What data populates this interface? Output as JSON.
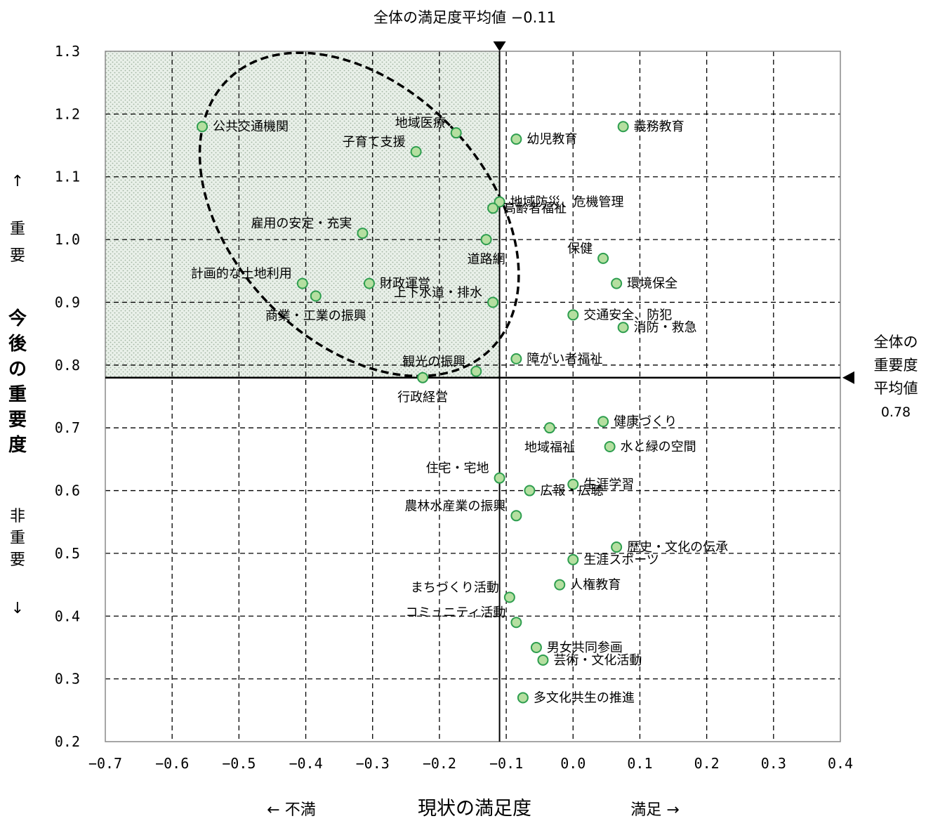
{
  "chart_data": {
    "type": "scatter",
    "xlabel": "現状の満足度",
    "xlabel_left": "← 不満",
    "xlabel_right": "満足 →",
    "ylabel": "今後の重要度",
    "ylabel_top": [
      "↑",
      "重",
      "要"
    ],
    "ylabel_chars": [
      "今",
      "後",
      "の",
      "重",
      "要",
      "度"
    ],
    "ylabel_bottom": [
      "非",
      "重",
      "要",
      "↓"
    ],
    "xlim": [
      -0.7,
      0.4
    ],
    "ylim": [
      0.2,
      1.3
    ],
    "x_ticks": [
      -0.7,
      -0.6,
      -0.5,
      -0.4,
      -0.3,
      -0.2,
      -0.1,
      0.0,
      0.1,
      0.2,
      0.3,
      0.4
    ],
    "x_tick_labels": [
      "−0.7",
      "−0.6",
      "−0.5",
      "−0.4",
      "−0.3",
      "−0.2",
      "−0.1",
      "0.0",
      "0.1",
      "0.2",
      "0.3",
      "0.4"
    ],
    "y_ticks": [
      0.2,
      0.3,
      0.4,
      0.5,
      0.6,
      0.7,
      0.8,
      0.9,
      1.0,
      1.1,
      1.2,
      1.3
    ],
    "y_tick_labels": [
      "0.2",
      "0.3",
      "0.4",
      "0.5",
      "0.6",
      "0.7",
      "0.8",
      "0.9",
      "1.0",
      "1.1",
      "1.2",
      "1.3"
    ],
    "grid": true,
    "avg_satisfaction": {
      "value": -0.11,
      "label": "全体の満足度平均値 −0.11"
    },
    "avg_importance": {
      "value": 0.78,
      "label_lines": [
        "全体の",
        "重要度",
        "平均値",
        "0.78"
      ]
    },
    "highlight_region": {
      "x": [
        -0.7,
        -0.11
      ],
      "y": [
        0.78,
        1.3
      ]
    },
    "emphasis_ellipse": {
      "cx": -0.32,
      "cy": 1.04,
      "rx": 0.19,
      "ry": 0.3,
      "rotation_deg": -44
    },
    "point_color": "#b5dfa0",
    "point_stroke": "#2e9e4f",
    "points": [
      {
        "name": "公共交通機関",
        "x": -0.555,
        "y": 1.18,
        "label_anchor": "start"
      },
      {
        "name": "地域医療",
        "x": -0.175,
        "y": 1.17,
        "label_anchor": "end"
      },
      {
        "name": "子育て支援",
        "x": -0.235,
        "y": 1.14,
        "label_anchor": "end"
      },
      {
        "name": "幼児教育",
        "x": -0.085,
        "y": 1.16,
        "label_anchor": "start"
      },
      {
        "name": "義務教育",
        "x": 0.075,
        "y": 1.18,
        "label_anchor": "start"
      },
      {
        "name": "地域防災、危機管理",
        "x": -0.11,
        "y": 1.06,
        "label_anchor": "start"
      },
      {
        "name": "高齢者福祉",
        "x": -0.12,
        "y": 1.05,
        "label_anchor": "start"
      },
      {
        "name": "雇用の安定・充実",
        "x": -0.315,
        "y": 1.01,
        "label_anchor": "end"
      },
      {
        "name": "道路網",
        "x": -0.13,
        "y": 1.0,
        "label_anchor": "middle"
      },
      {
        "name": "保健",
        "x": 0.045,
        "y": 0.97,
        "label_anchor": "end"
      },
      {
        "name": "環境保全",
        "x": 0.065,
        "y": 0.93,
        "label_anchor": "start"
      },
      {
        "name": "計画的な土地利用",
        "x": -0.405,
        "y": 0.93,
        "label_anchor": "end"
      },
      {
        "name": "財政運営",
        "x": -0.305,
        "y": 0.93,
        "label_anchor": "start"
      },
      {
        "name": "商業・工業の振興",
        "x": -0.385,
        "y": 0.91,
        "label_anchor": "middle"
      },
      {
        "name": "上下水道・排水",
        "x": -0.12,
        "y": 0.9,
        "label_anchor": "end"
      },
      {
        "name": "交通安全、防犯",
        "x": 0.0,
        "y": 0.88,
        "label_anchor": "start"
      },
      {
        "name": "消防・救急",
        "x": 0.075,
        "y": 0.86,
        "label_anchor": "start"
      },
      {
        "name": "障がい者福祉",
        "x": -0.085,
        "y": 0.81,
        "label_anchor": "start"
      },
      {
        "name": "観光の振興",
        "x": -0.145,
        "y": 0.79,
        "label_anchor": "end"
      },
      {
        "name": "行政経営",
        "x": -0.225,
        "y": 0.78,
        "label_anchor": "middle"
      },
      {
        "name": "地域福祉",
        "x": -0.035,
        "y": 0.7,
        "label_anchor": "middle"
      },
      {
        "name": "健康づくり",
        "x": 0.045,
        "y": 0.71,
        "label_anchor": "start"
      },
      {
        "name": "水と緑の空間",
        "x": 0.055,
        "y": 0.67,
        "label_anchor": "start"
      },
      {
        "name": "住宅・宅地",
        "x": -0.11,
        "y": 0.62,
        "label_anchor": "end"
      },
      {
        "name": "生涯学習",
        "x": 0.0,
        "y": 0.61,
        "label_anchor": "start"
      },
      {
        "name": "広報・広聴",
        "x": -0.065,
        "y": 0.6,
        "label_anchor": "start"
      },
      {
        "name": "農林水産業の振興",
        "x": -0.085,
        "y": 0.56,
        "label_anchor": "end"
      },
      {
        "name": "歴史・文化の伝承",
        "x": 0.065,
        "y": 0.51,
        "label_anchor": "start"
      },
      {
        "name": "生涯スポーツ",
        "x": 0.0,
        "y": 0.49,
        "label_anchor": "start"
      },
      {
        "name": "人権教育",
        "x": -0.02,
        "y": 0.45,
        "label_anchor": "start"
      },
      {
        "name": "まちづくり活動",
        "x": -0.095,
        "y": 0.43,
        "label_anchor": "end"
      },
      {
        "name": "コミュニティ活動",
        "x": -0.085,
        "y": 0.39,
        "label_anchor": "end"
      },
      {
        "name": "男女共同参画",
        "x": -0.055,
        "y": 0.35,
        "label_anchor": "start"
      },
      {
        "name": "芸術・文化活動",
        "x": -0.045,
        "y": 0.33,
        "label_anchor": "start"
      },
      {
        "name": "多文化共生の推進",
        "x": -0.075,
        "y": 0.27,
        "label_anchor": "start"
      }
    ]
  }
}
